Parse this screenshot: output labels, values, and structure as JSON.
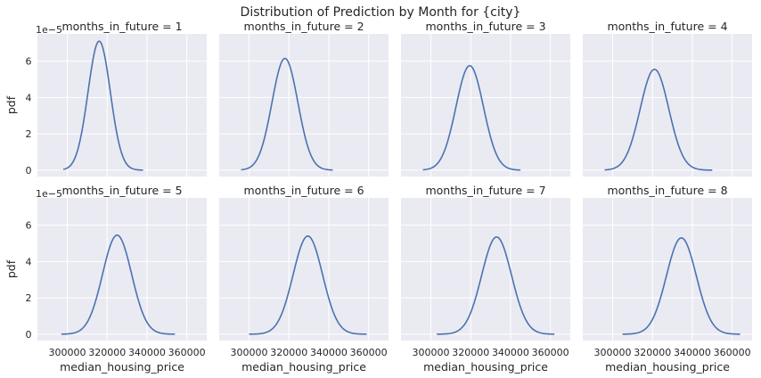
{
  "chart_data": {
    "type": "line",
    "title": "Distribution of Prediction by Month for {city}",
    "xlabel": "median_housing_price",
    "ylabel": "pdf",
    "y_offset_label": "1e−5",
    "xlim": [
      285000,
      370000
    ],
    "ylim": [
      -0.35,
      7.5
    ],
    "y_scale": "1e-5",
    "x_ticks": [
      300000,
      320000,
      340000,
      360000
    ],
    "y_ticks": [
      0,
      2,
      4,
      6
    ],
    "x_tick_labels": [
      "300000",
      "320000",
      "340000",
      "360000"
    ],
    "y_tick_labels": [
      "0",
      "2",
      "4",
      "6"
    ],
    "grid": true,
    "line_color": "#4c72b0",
    "background_color": "#eaeaf2",
    "layout": "2 rows x 4 columns, shared axes",
    "panels": [
      {
        "title": "months_in_future = 1",
        "mean": 316000,
        "std": 5600,
        "x_range": [
          298000,
          338000
        ],
        "peak": 7.1
      },
      {
        "title": "months_in_future = 2",
        "mean": 318000,
        "std": 6500,
        "x_range": [
          296000,
          342000
        ],
        "peak": 6.15
      },
      {
        "title": "months_in_future = 3",
        "mean": 319500,
        "std": 6900,
        "x_range": [
          296000,
          345000
        ],
        "peak": 5.75
      },
      {
        "title": "months_in_future = 4",
        "mean": 321000,
        "std": 7200,
        "x_range": [
          296000,
          350000
        ],
        "peak": 5.55
      },
      {
        "title": "months_in_future = 5",
        "mean": 325000,
        "std": 7300,
        "x_range": [
          297000,
          354000
        ],
        "peak": 5.45
      },
      {
        "title": "months_in_future = 6",
        "mean": 329500,
        "std": 7400,
        "x_range": [
          300000,
          359000
        ],
        "peak": 5.4
      },
      {
        "title": "months_in_future = 7",
        "mean": 333000,
        "std": 7500,
        "x_range": [
          303000,
          362000
        ],
        "peak": 5.35
      },
      {
        "title": "months_in_future = 8",
        "mean": 334500,
        "std": 7500,
        "x_range": [
          305000,
          364000
        ],
        "peak": 5.3
      }
    ]
  }
}
